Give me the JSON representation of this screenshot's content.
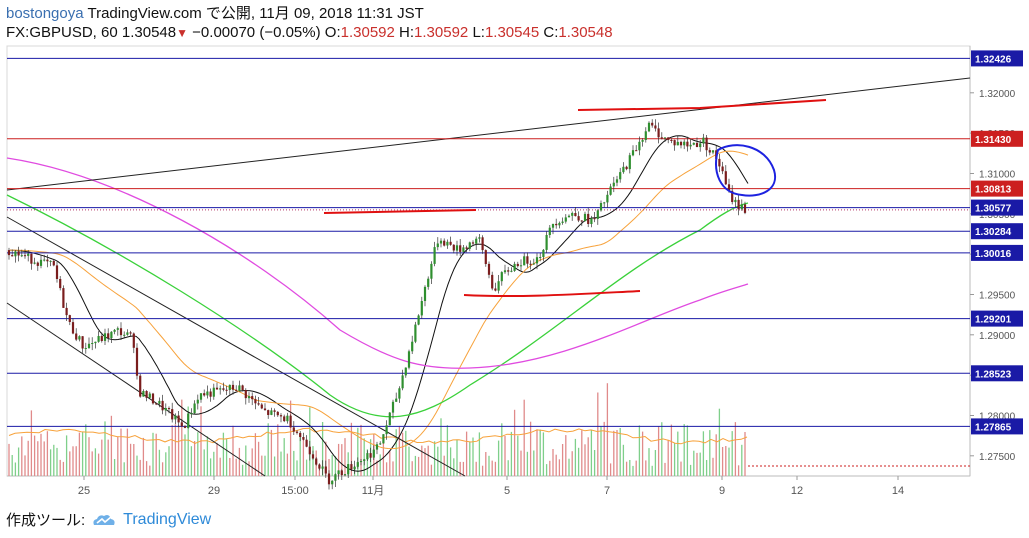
{
  "header": {
    "author": "bostongoya",
    "publish_text": "TradingView.com で公開, 11月 09, 2018 11:31 JST",
    "symbol_line": "FX:GBPUSD, 60",
    "last": "1.30548",
    "change": "−0.00070 (−0.05%)",
    "o_label": "O:",
    "o_val": "1.30592",
    "h_label": "H:",
    "h_val": "1.30592",
    "l_label": "L:",
    "l_val": "1.30545",
    "c_label": "C:",
    "c_val": "1.30548"
  },
  "footer": {
    "label": "作成ツール:",
    "brand": "TradingView"
  },
  "colors": {
    "level_line": "#1a1aa6",
    "red_level": "#cc1f1f",
    "ma_black": "#111111",
    "ma_orange": "#f7a23b",
    "ma_green": "#3ad13a",
    "ma_magenta": "#e04be0",
    "candle_up": "#2f8f2f",
    "candle_down": "#7a1d1d",
    "annotation_red": "#e01010",
    "annotation_blue": "#1d22e0"
  },
  "chart_data": {
    "type": "candlestick",
    "symbol": "FX:GBPUSD",
    "interval": "60",
    "ylim": [
      1.2725,
      1.3258
    ],
    "price_ticks": [
      "1.32000",
      "1.31500",
      "1.31000",
      "1.30500",
      "1.30000",
      "1.29500",
      "1.29000",
      "1.28500",
      "1.28000",
      "1.27500"
    ],
    "x_ticks": [
      "25",
      "29",
      "15:00",
      "11月",
      "5",
      "7",
      "9",
      "12",
      "14"
    ],
    "levels": [
      {
        "label": "1.32426",
        "color": "blue"
      },
      {
        "label": "1.31430",
        "color": "red"
      },
      {
        "label": "1.30813",
        "color": "red"
      },
      {
        "label": "1.30577",
        "color": "blue"
      },
      {
        "label": "1.30284",
        "color": "blue"
      },
      {
        "label": "1.30016",
        "color": "blue"
      },
      {
        "label": "1.29201",
        "color": "blue"
      },
      {
        "label": "1.28523",
        "color": "blue"
      },
      {
        "label": "1.27865",
        "color": "blue"
      }
    ],
    "moving_averages": [
      "black",
      "orange",
      "green",
      "magenta"
    ],
    "volume": true
  }
}
